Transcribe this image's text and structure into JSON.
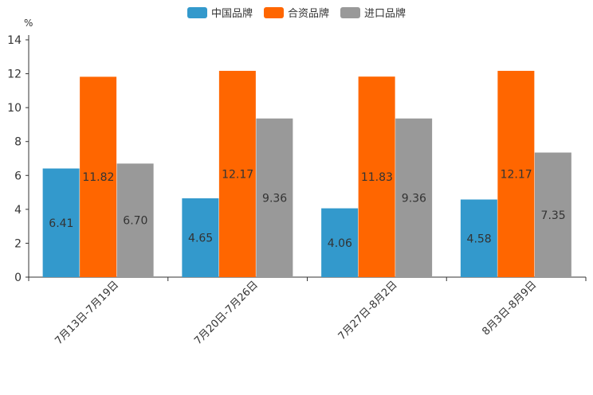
{
  "chart_data": {
    "type": "bar",
    "title": "",
    "unit_label": "%",
    "xlabel": "",
    "ylabel": "",
    "ylim": [
      0,
      14
    ],
    "yticks": [
      0,
      2,
      4,
      6,
      8,
      10,
      12,
      14
    ],
    "grid": false,
    "legend_position": "top-center",
    "categories": [
      "7月13日-7月19日",
      "7月20日-7月26日",
      "7月27日-8月2日",
      "8月3日-8月9日"
    ],
    "series": [
      {
        "name": "中国品牌",
        "color": "#3399cc",
        "values": [
          6.41,
          4.65,
          4.06,
          4.58
        ],
        "labels": [
          "6.41",
          "4.65",
          "4.06",
          "4.58"
        ]
      },
      {
        "name": "合资品牌",
        "color": "#ff6600",
        "values": [
          11.82,
          12.17,
          11.83,
          12.17
        ],
        "labels": [
          "11.82",
          "12.17",
          "11.83",
          "12.17"
        ]
      },
      {
        "name": "进口品牌",
        "color": "#999999",
        "values": [
          6.7,
          9.36,
          9.36,
          7.35
        ],
        "labels": [
          "6.70",
          "9.36",
          "9.36",
          "7.35"
        ]
      }
    ]
  }
}
